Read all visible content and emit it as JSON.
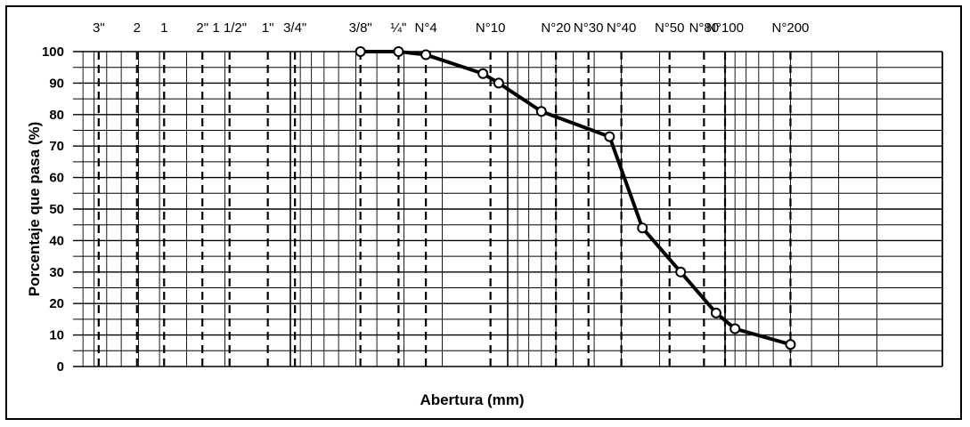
{
  "chart_data": {
    "type": "line",
    "title": "",
    "xlabel": "Abertura (mm)",
    "ylabel": "Porcentaje que pasa (%)",
    "x_scale": "log",
    "x_direction": "decreasing",
    "ylim": [
      0,
      100
    ],
    "y_ticks": [
      "0",
      "10",
      "20",
      "30",
      "40",
      "50",
      "60",
      "70",
      "80",
      "90",
      "100"
    ],
    "grid": true,
    "sieves": [
      {
        "label": "3\"",
        "size_mm": 76.2
      },
      {
        "label": "2",
        "size_mm": 50.8
      },
      {
        "label": "1",
        "size_mm": 38.1
      },
      {
        "label": "2\"",
        "size_mm": 25.4
      },
      {
        "label": "1 1/2\"",
        "size_mm": 19.05
      },
      {
        "label": "1\"",
        "size_mm": 12.7
      },
      {
        "label": "3/4\"",
        "size_mm": 9.525
      },
      {
        "label": "3/8\"",
        "size_mm": 4.76
      },
      {
        "label": "¼\"",
        "size_mm": 3.18
      },
      {
        "label": "N°4",
        "size_mm": 2.38
      },
      {
        "label": "N°10",
        "size_mm": 1.2
      },
      {
        "label": "N°20",
        "size_mm": 0.6
      },
      {
        "label": "N°30",
        "size_mm": 0.425
      },
      {
        "label": "N°40",
        "size_mm": 0.3
      },
      {
        "label": "N°50",
        "size_mm": 0.18
      },
      {
        "label": "N°80",
        "size_mm": 0.125
      },
      {
        "label": "N°100",
        "size_mm": 0.1
      },
      {
        "label": "N°200",
        "size_mm": 0.05
      }
    ],
    "series": [
      {
        "x": [
          4.76,
          3.18,
          2.38,
          1.3,
          1.1,
          0.7,
          0.34,
          0.24,
          0.16,
          0.11,
          0.09,
          0.05
        ],
        "y": [
          100,
          100,
          99,
          93,
          90,
          81,
          73,
          44,
          30,
          17,
          12,
          7
        ]
      }
    ]
  }
}
